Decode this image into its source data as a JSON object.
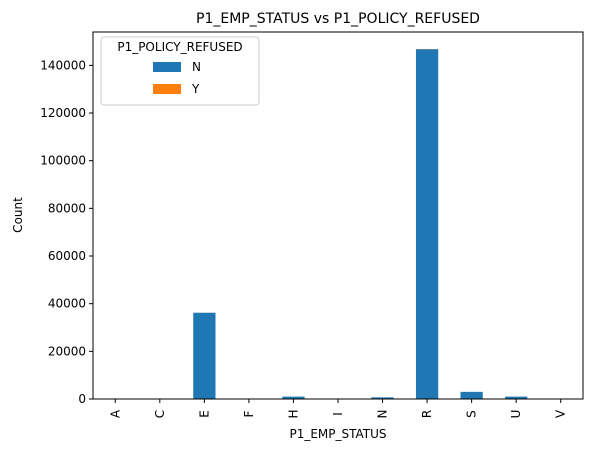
{
  "chart_data": {
    "type": "bar",
    "stacked": true,
    "title": "P1_EMP_STATUS vs P1_POLICY_REFUSED",
    "xlabel": "P1_EMP_STATUS",
    "ylabel": "Count",
    "categories": [
      "A",
      "C",
      "E",
      "F",
      "H",
      "I",
      "N",
      "R",
      "S",
      "U",
      "V"
    ],
    "series": [
      {
        "name": "N",
        "color": "#1f77b4",
        "values": [
          70,
          30,
          36200,
          40,
          1000,
          60,
          700,
          146800,
          3000,
          1000,
          90
        ]
      },
      {
        "name": "Y",
        "color": "#ff7f0e",
        "values": [
          0,
          0,
          20,
          0,
          0,
          0,
          0,
          80,
          0,
          0,
          0
        ]
      }
    ],
    "ylim": [
      0,
      154000
    ],
    "yticks": [
      0,
      20000,
      40000,
      60000,
      80000,
      100000,
      120000,
      140000
    ],
    "grid": false,
    "legend": {
      "title": "P1_POLICY_REFUSED",
      "placement": "top-left"
    }
  }
}
